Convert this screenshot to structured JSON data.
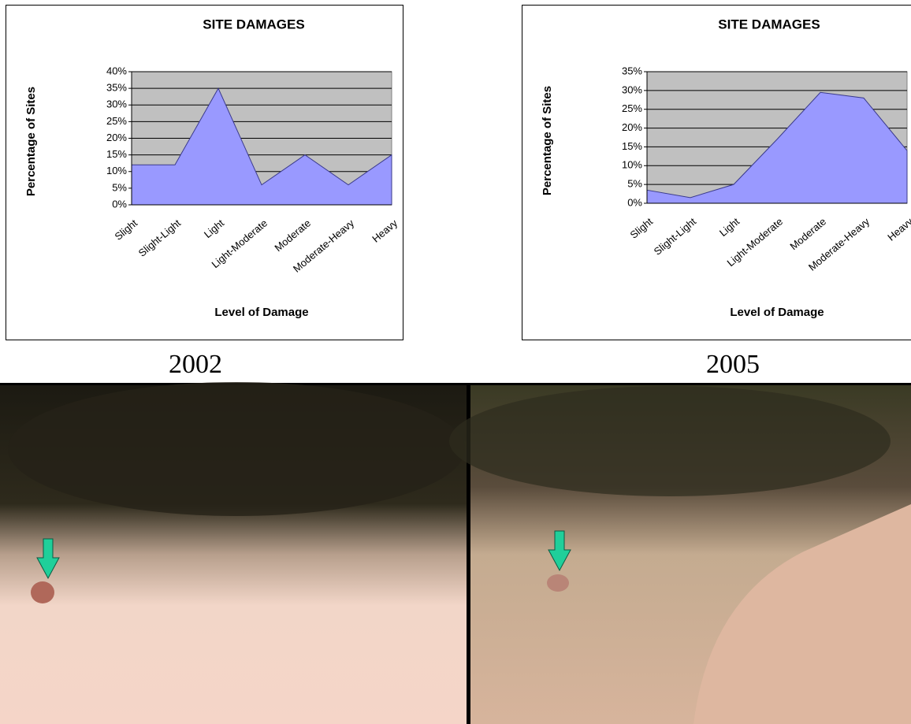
{
  "chart_data": [
    {
      "type": "area",
      "title": "SITE DAMAGES",
      "x_label": "Level of Damage",
      "y_label": "Percentage of Sites",
      "categories": [
        "Slight",
        "Slight-Light",
        "Light",
        "Light-Moderate",
        "Moderate",
        "Moderate-Heavy",
        "Heavy"
      ],
      "values": [
        12,
        12,
        35,
        6,
        15,
        6,
        15
      ],
      "color": "#9999ff",
      "ylim": [
        0,
        40
      ],
      "yticks": [
        {
          "value": 0,
          "label": "0%"
        },
        {
          "value": 5,
          "label": "5%"
        },
        {
          "value": 10,
          "label": "10%"
        },
        {
          "value": 15,
          "label": "15%"
        },
        {
          "value": 20,
          "label": "20%"
        },
        {
          "value": 25,
          "label": "25%"
        },
        {
          "value": 30,
          "label": "30%"
        },
        {
          "value": 35,
          "label": "35%"
        },
        {
          "value": 40,
          "label": "40%"
        }
      ],
      "grid": true,
      "caption": "2002"
    },
    {
      "type": "area",
      "title": "SITE DAMAGES",
      "x_label": "Level of Damage",
      "y_label": "Percentage of Sites",
      "categories": [
        "Slight",
        "Slight-Light",
        "Light",
        "Light-Moderate",
        "Moderate",
        "Moderate-Heavy",
        "Heavy"
      ],
      "values": [
        3.5,
        1.5,
        5,
        17,
        29.5,
        28,
        14
      ],
      "color": "#9999ff",
      "ylim": [
        0,
        35
      ],
      "yticks": [
        {
          "value": 0,
          "label": "0%"
        },
        {
          "value": 5,
          "label": "5%"
        },
        {
          "value": 10,
          "label": "10%"
        },
        {
          "value": 15,
          "label": "15%"
        },
        {
          "value": 20,
          "label": "20%"
        },
        {
          "value": 25,
          "label": "25%"
        },
        {
          "value": 30,
          "label": "30%"
        },
        {
          "value": 35,
          "label": "35%"
        }
      ],
      "grid": true,
      "caption": "2005"
    }
  ]
}
